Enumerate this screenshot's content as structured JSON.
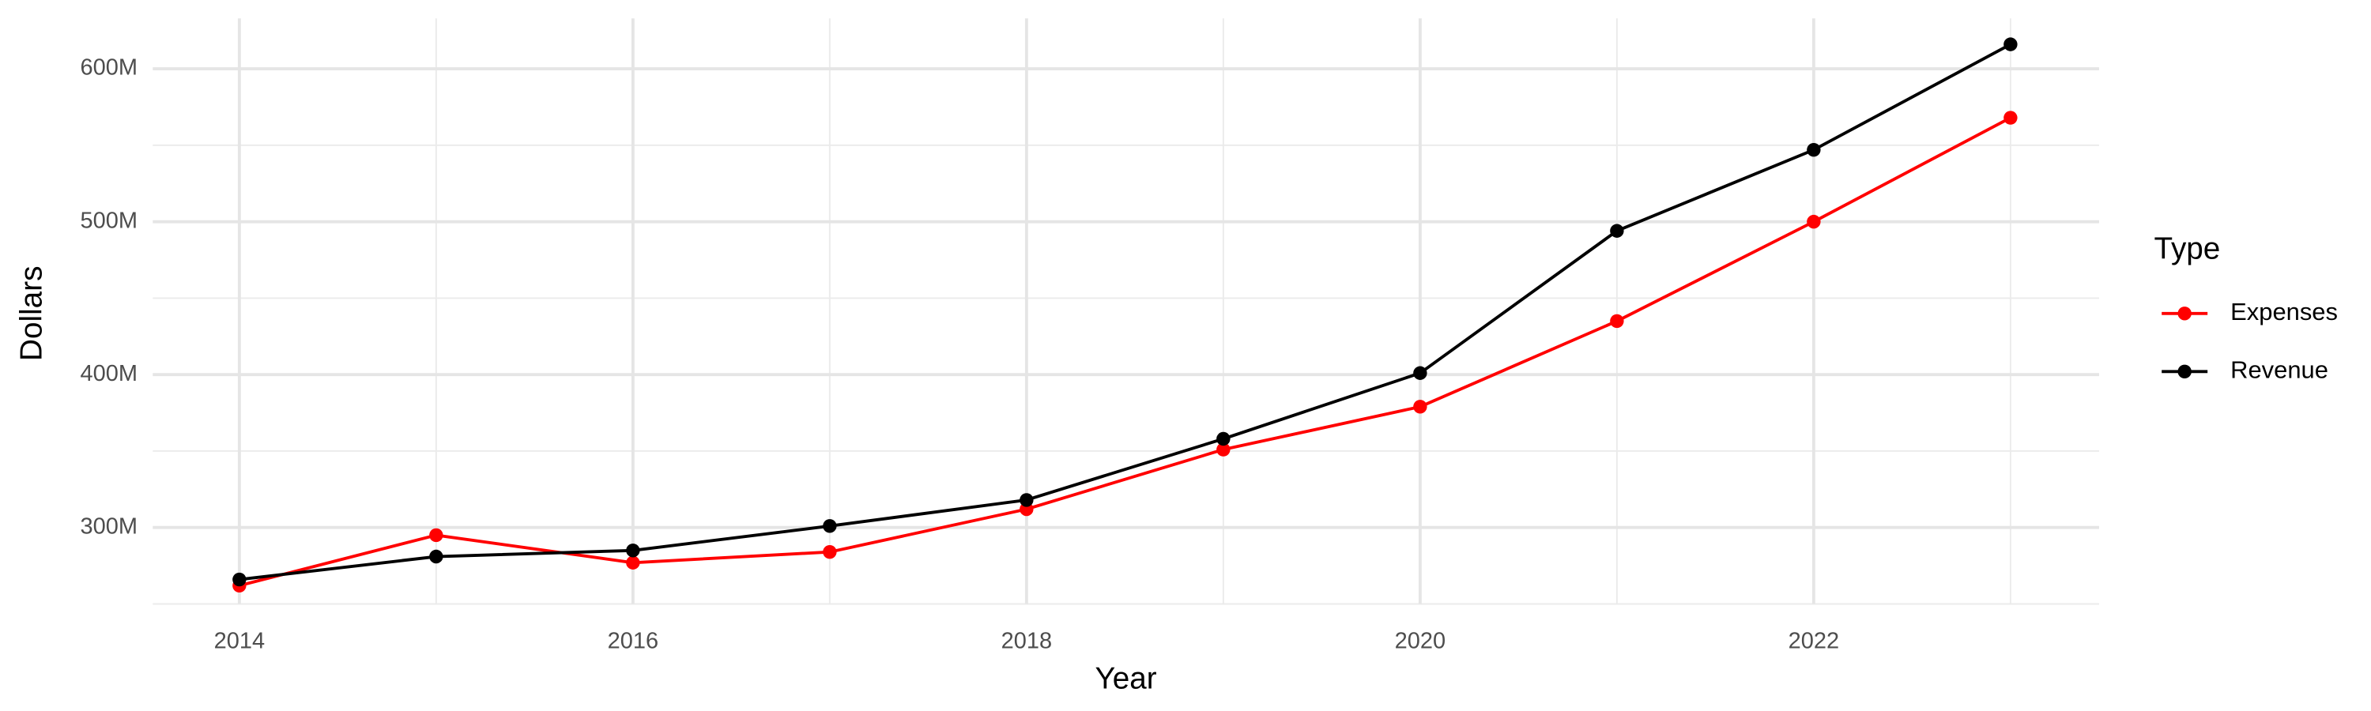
{
  "chart_data": {
    "type": "line",
    "x_label": "Year",
    "y_label": "Dollars",
    "legend_title": "Type",
    "legend_position": "right",
    "grid": true,
    "x": [
      2014,
      2015,
      2016,
      2017,
      2018,
      2019,
      2020,
      2021,
      2022,
      2023
    ],
    "series": [
      {
        "name": "Expenses",
        "color": "#ff0000",
        "values": [
          262000000,
          295000000,
          277000000,
          284000000,
          312000000,
          351000000,
          379000000,
          435000000,
          500000000,
          568000000
        ]
      },
      {
        "name": "Revenue",
        "color": "#000000",
        "values": [
          266000000,
          281000000,
          285000000,
          301000000,
          318000000,
          358000000,
          401000000,
          494000000,
          547000000,
          616000000
        ]
      }
    ],
    "xlim": [
      2013.56,
      2023.45
    ],
    "xticks": [
      2014,
      2016,
      2018,
      2020,
      2022
    ],
    "ylim": [
      250000000,
      633000000
    ],
    "yticks": [
      {
        "value": 300000000,
        "label": "300M"
      },
      {
        "value": 400000000,
        "label": "400M"
      },
      {
        "value": 500000000,
        "label": "500M"
      },
      {
        "value": 600000000,
        "label": "600M"
      }
    ]
  }
}
